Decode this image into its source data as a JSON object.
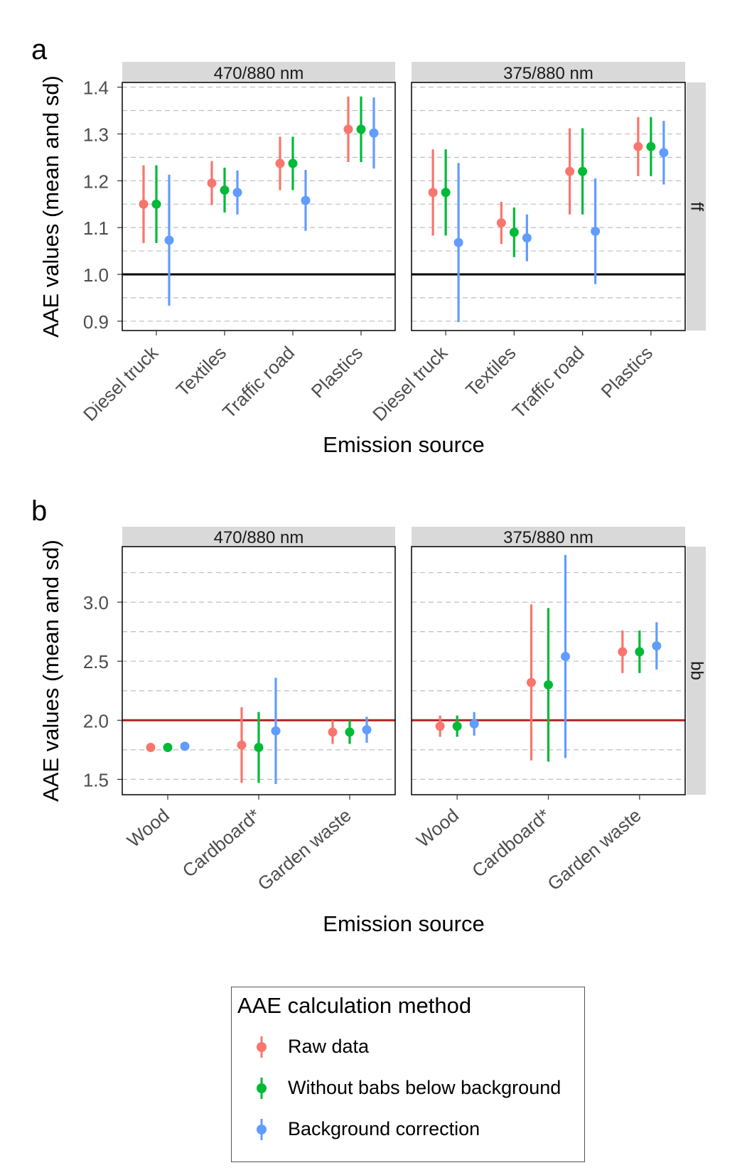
{
  "colors": {
    "raw": "#F8766D",
    "without": "#00BA38",
    "background": "#619CFF",
    "reference_a": "#000000",
    "reference_b": "#B22222",
    "strip": "#D9D9D9",
    "grid": "#BEBEBE"
  },
  "legend": {
    "title": "AAE calculation method",
    "items": [
      {
        "label": "Raw data",
        "color_key": "raw"
      },
      {
        "label": "Without babs below background",
        "color_key": "without"
      },
      {
        "label": "Background correction",
        "color_key": "background"
      }
    ]
  },
  "chart_data": [
    {
      "type": "scatter",
      "panel_tag": "a",
      "xlabel": "Emission source",
      "ylabel": "AAE values (mean and sd)",
      "row_strip": "ff",
      "categories": [
        "Diesel truck",
        "Textiles",
        "Traffic road",
        "Plastics"
      ],
      "ylim": [
        0.88,
        1.41
      ],
      "yticks": [
        "0.9",
        "1.0",
        "1.1",
        "1.2",
        "1.3",
        "1.4"
      ],
      "reference_line": 1.0,
      "facets": [
        {
          "strip": "470/880 nm",
          "series": [
            {
              "name": "Raw data",
              "mean": [
                1.15,
                1.195,
                1.237,
                1.31
              ],
              "sd": [
                0.083,
                0.047,
                0.057,
                0.07
              ]
            },
            {
              "name": "Without babs below background",
              "mean": [
                1.15,
                1.18,
                1.237,
                1.31
              ],
              "sd": [
                0.083,
                0.048,
                0.057,
                0.07
              ]
            },
            {
              "name": "Background correction",
              "mean": [
                1.073,
                1.175,
                1.158,
                1.302
              ],
              "sd": [
                0.14,
                0.047,
                0.065,
                0.076
              ]
            }
          ]
        },
        {
          "strip": "375/880 nm",
          "series": [
            {
              "name": "Raw data",
              "mean": [
                1.175,
                1.11,
                1.22,
                1.273
              ],
              "sd": [
                0.092,
                0.045,
                0.092,
                0.063
              ]
            },
            {
              "name": "Without babs below background",
              "mean": [
                1.175,
                1.09,
                1.22,
                1.273
              ],
              "sd": [
                0.092,
                0.053,
                0.092,
                0.063
              ]
            },
            {
              "name": "Background correction",
              "mean": [
                1.068,
                1.078,
                1.092,
                1.26
              ],
              "sd": [
                0.17,
                0.05,
                0.113,
                0.068
              ]
            }
          ]
        }
      ]
    },
    {
      "type": "scatter",
      "panel_tag": "b",
      "xlabel": "Emission source",
      "ylabel": "AAE values (mean and sd)",
      "row_strip": "bb",
      "categories": [
        "Wood",
        "Cardboard*",
        "Garden waste"
      ],
      "ylim": [
        1.37,
        3.47
      ],
      "yticks": [
        "1.5",
        "2.0",
        "2.5",
        "3.0"
      ],
      "reference_line": 2.0,
      "facets": [
        {
          "strip": "470/880 nm",
          "series": [
            {
              "name": "Raw data",
              "mean": [
                1.77,
                1.79,
                1.9
              ],
              "sd": [
                0.0,
                0.32,
                0.1
              ]
            },
            {
              "name": "Without babs below background",
              "mean": [
                1.77,
                1.77,
                1.9
              ],
              "sd": [
                0.0,
                0.3,
                0.1
              ]
            },
            {
              "name": "Background correction",
              "mean": [
                1.78,
                1.91,
                1.92
              ],
              "sd": [
                0.0,
                0.45,
                0.11
              ]
            }
          ]
        },
        {
          "strip": "375/880 nm",
          "series": [
            {
              "name": "Raw data",
              "mean": [
                1.95,
                2.32,
                2.58
              ],
              "sd": [
                0.09,
                0.66,
                0.18
              ]
            },
            {
              "name": "Without babs below background",
              "mean": [
                1.95,
                2.3,
                2.58
              ],
              "sd": [
                0.09,
                0.65,
                0.18
              ]
            },
            {
              "name": "Background correction",
              "mean": [
                1.97,
                2.54,
                2.63
              ],
              "sd": [
                0.1,
                0.86,
                0.2
              ]
            }
          ]
        }
      ]
    }
  ]
}
